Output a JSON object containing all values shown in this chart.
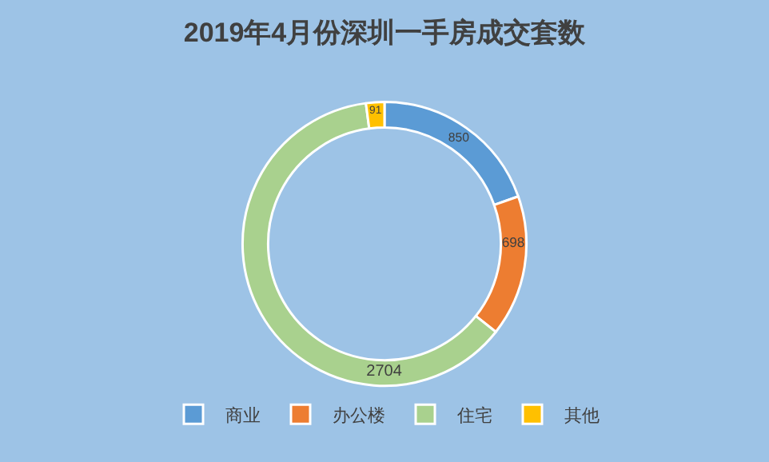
{
  "chart_data": {
    "type": "donut",
    "title": "2019年4月份深圳一手房成交套数",
    "categories": [
      "商业",
      "办公楼",
      "住宅",
      "其他"
    ],
    "values": [
      850,
      698,
      2704,
      91
    ],
    "colors": [
      "#5b9bd5",
      "#ed7d31",
      "#a9d18e",
      "#ffc000"
    ],
    "data_labels": true,
    "legend": "bottom"
  }
}
